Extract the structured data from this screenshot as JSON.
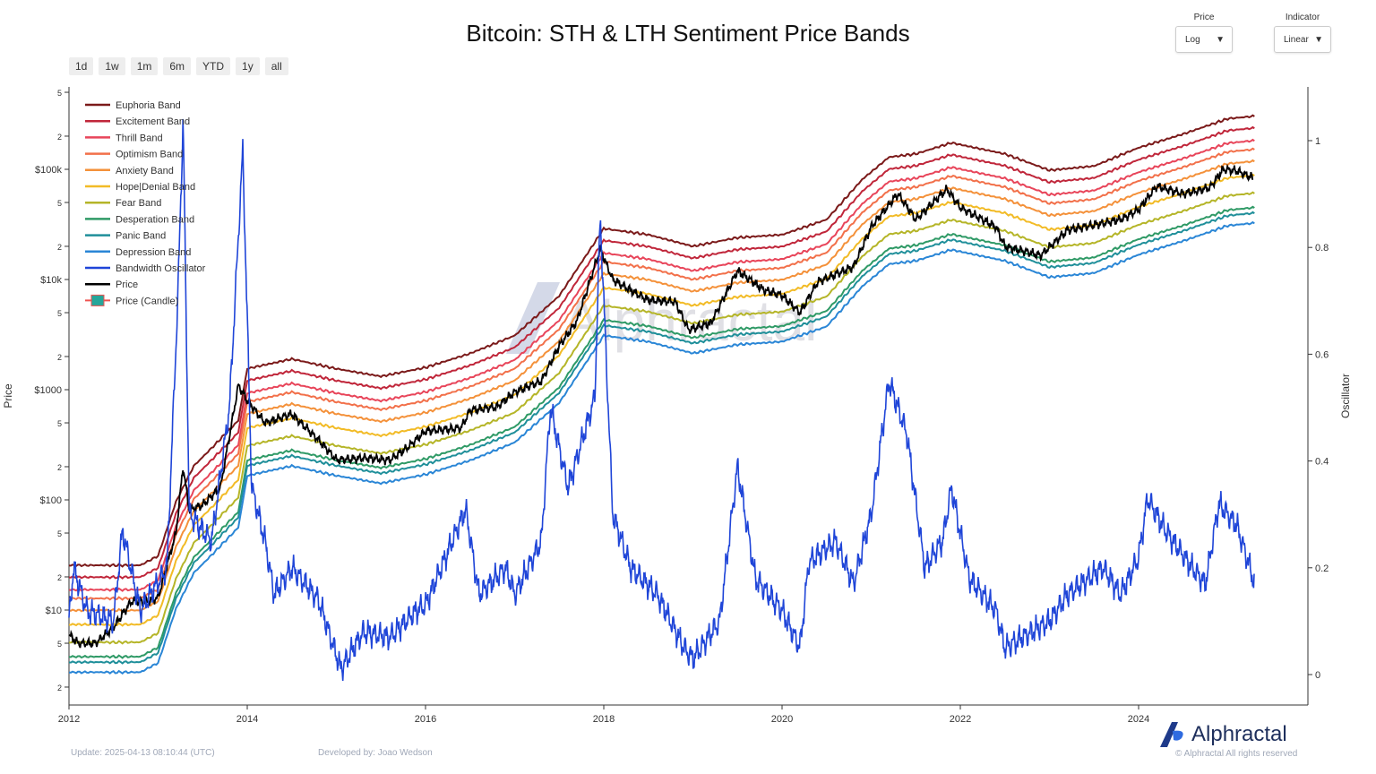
{
  "header": {
    "title": "Bitcoin: STH & LTH Sentiment Price Bands"
  },
  "range_buttons": [
    "1d",
    "1w",
    "1m",
    "6m",
    "YTD",
    "1y",
    "all"
  ],
  "controls": {
    "price_label": "Price",
    "price_value": "Log",
    "indicator_label": "Indicator",
    "indicator_value": "Linear"
  },
  "footer": {
    "update": "Update: 2025-04-13 08:10:44 (UTC)",
    "developer": "Developed by: Joao Wedson",
    "brand": "Alphractal",
    "rights": "© Alphractal All rights reserved"
  },
  "watermark": "Alphractal",
  "chart_data": {
    "type": "line",
    "title": "Bitcoin: STH & LTH Sentiment Price Bands",
    "ylabel": "Price",
    "y2label": "Oscillator",
    "xlim": [
      2012,
      2025.9
    ],
    "ylim": [
      1.5,
      600000
    ],
    "y2lim": [
      -0.08,
      1.08
    ],
    "x_ticks": [
      "2012",
      "2014",
      "2016",
      "2018",
      "2020",
      "2022",
      "2024"
    ],
    "y_ticks": [
      {
        "v": 2,
        "l": "2"
      },
      {
        "v": 5,
        "l": "5"
      },
      {
        "v": 10,
        "l": "$10"
      },
      {
        "v": 20,
        "l": "2"
      },
      {
        "v": 50,
        "l": "5"
      },
      {
        "v": 100,
        "l": "$100"
      },
      {
        "v": 200,
        "l": "2"
      },
      {
        "v": 500,
        "l": "5"
      },
      {
        "v": 1000,
        "l": "$1000"
      },
      {
        "v": 2000,
        "l": "2"
      },
      {
        "v": 5000,
        "l": "5"
      },
      {
        "v": 10000,
        "l": "$10k"
      },
      {
        "v": 20000,
        "l": "2"
      },
      {
        "v": 50000,
        "l": "5"
      },
      {
        "v": 100000,
        "l": "$100k"
      },
      {
        "v": 200000,
        "l": "2"
      },
      {
        "v": 500000,
        "l": "5"
      }
    ],
    "y2_ticks": [
      "0",
      "0.2",
      "0.4",
      "0.6",
      "0.8",
      "1"
    ],
    "legend_position": "top-left",
    "band_reference_euphoria": [
      [
        2012.0,
        25.5
      ],
      [
        2012.8,
        25.5
      ],
      [
        2013.0,
        31
      ],
      [
        2013.2,
        96
      ],
      [
        2013.4,
        203
      ],
      [
        2013.6,
        295
      ],
      [
        2013.9,
        525
      ],
      [
        2014.0,
        1550
      ],
      [
        2014.5,
        1900
      ],
      [
        2015.0,
        1550
      ],
      [
        2015.5,
        1320
      ],
      [
        2016.0,
        1590
      ],
      [
        2016.5,
        2130
      ],
      [
        2017.0,
        3100
      ],
      [
        2017.5,
        7100
      ],
      [
        2017.9,
        21800
      ],
      [
        2018.0,
        29000
      ],
      [
        2018.5,
        25500
      ],
      [
        2019.0,
        20000
      ],
      [
        2019.5,
        24000
      ],
      [
        2020.0,
        25500
      ],
      [
        2020.5,
        35000
      ],
      [
        2020.9,
        81000
      ],
      [
        2021.2,
        129000
      ],
      [
        2021.5,
        138000
      ],
      [
        2021.9,
        174000
      ],
      [
        2022.5,
        138000
      ],
      [
        2023.0,
        98000
      ],
      [
        2023.5,
        107000
      ],
      [
        2024.0,
        157000
      ],
      [
        2024.5,
        209000
      ],
      [
        2025.0,
        288000
      ],
      [
        2025.3,
        304000
      ]
    ],
    "bands": [
      {
        "name": "Euphoria Band",
        "color": "#7b1a1a",
        "multiplier": 1
      },
      {
        "name": "Excitement Band",
        "color": "#c0263a",
        "multiplier": 0.78
      },
      {
        "name": "Thrill Band",
        "color": "#e8455a",
        "multiplier": 0.6
      },
      {
        "name": "Optimism Band",
        "color": "#f2704a",
        "multiplier": 0.5
      },
      {
        "name": "Anxiety Band",
        "color": "#f4913a",
        "multiplier": 0.39
      },
      {
        "name": "Hope|Denial Band",
        "color": "#f2bb26",
        "multiplier": 0.29
      },
      {
        "name": "Fear Band",
        "color": "#b5b528",
        "multiplier": 0.2
      },
      {
        "name": "Desperation Band",
        "color": "#2f9a66",
        "multiplier": 0.148
      },
      {
        "name": "Panic Band",
        "color": "#1f8f9a",
        "multiplier": 0.132
      },
      {
        "name": "Depression Band",
        "color": "#2a86d6",
        "multiplier": 0.107
      }
    ],
    "oscillator": {
      "name": "Bandwidth Oscillator",
      "color": "#1f45d8",
      "points": [
        [
          2012.0,
          0.1
        ],
        [
          2012.05,
          0.2
        ],
        [
          2012.2,
          0.12
        ],
        [
          2012.5,
          0.1
        ],
        [
          2012.6,
          0.27
        ],
        [
          2012.8,
          0.12
        ],
        [
          2013.1,
          0.2
        ],
        [
          2013.22,
          0.7
        ],
        [
          2013.28,
          1.04
        ],
        [
          2013.35,
          0.3
        ],
        [
          2013.6,
          0.25
        ],
        [
          2013.8,
          0.5
        ],
        [
          2013.95,
          0.98
        ],
        [
          2014.05,
          0.35
        ],
        [
          2014.2,
          0.25
        ],
        [
          2014.3,
          0.15
        ],
        [
          2014.5,
          0.2
        ],
        [
          2014.8,
          0.14
        ],
        [
          2015.05,
          0.01
        ],
        [
          2015.3,
          0.08
        ],
        [
          2015.6,
          0.07
        ],
        [
          2015.9,
          0.12
        ],
        [
          2016.0,
          0.13
        ],
        [
          2016.45,
          0.31
        ],
        [
          2016.6,
          0.15
        ],
        [
          2016.9,
          0.2
        ],
        [
          2017.0,
          0.15
        ],
        [
          2017.3,
          0.25
        ],
        [
          2017.4,
          0.5
        ],
        [
          2017.6,
          0.35
        ],
        [
          2017.9,
          0.52
        ],
        [
          2017.96,
          0.86
        ],
        [
          2018.1,
          0.3
        ],
        [
          2018.3,
          0.2
        ],
        [
          2018.6,
          0.15
        ],
        [
          2018.9,
          0.05
        ],
        [
          2019.0,
          0.03
        ],
        [
          2019.3,
          0.1
        ],
        [
          2019.5,
          0.39
        ],
        [
          2019.7,
          0.18
        ],
        [
          2020.0,
          0.12
        ],
        [
          2020.2,
          0.05
        ],
        [
          2020.3,
          0.21
        ],
        [
          2020.6,
          0.25
        ],
        [
          2020.8,
          0.17
        ],
        [
          2021.0,
          0.3
        ],
        [
          2021.2,
          0.55
        ],
        [
          2021.4,
          0.45
        ],
        [
          2021.6,
          0.2
        ],
        [
          2021.8,
          0.25
        ],
        [
          2021.9,
          0.35
        ],
        [
          2022.1,
          0.18
        ],
        [
          2022.4,
          0.12
        ],
        [
          2022.5,
          0.05
        ],
        [
          2022.8,
          0.08
        ],
        [
          2023.0,
          0.1
        ],
        [
          2023.2,
          0.15
        ],
        [
          2023.6,
          0.2
        ],
        [
          2023.8,
          0.15
        ],
        [
          2024.0,
          0.22
        ],
        [
          2024.1,
          0.33
        ],
        [
          2024.3,
          0.27
        ],
        [
          2024.6,
          0.2
        ],
        [
          2024.75,
          0.17
        ],
        [
          2024.9,
          0.32
        ],
        [
          2025.1,
          0.28
        ],
        [
          2025.25,
          0.2
        ],
        [
          2025.3,
          0.17
        ]
      ]
    },
    "price": {
      "name": "Price",
      "color": "#000000",
      "points": [
        [
          2012.0,
          6
        ],
        [
          2012.1,
          5
        ],
        [
          2012.3,
          5
        ],
        [
          2012.5,
          7
        ],
        [
          2012.7,
          12
        ],
        [
          2012.9,
          12
        ],
        [
          2013.0,
          13
        ],
        [
          2013.2,
          50
        ],
        [
          2013.28,
          200
        ],
        [
          2013.35,
          80
        ],
        [
          2013.5,
          90
        ],
        [
          2013.7,
          130
        ],
        [
          2013.9,
          1100
        ],
        [
          2014.0,
          800
        ],
        [
          2014.2,
          500
        ],
        [
          2014.5,
          600
        ],
        [
          2014.8,
          350
        ],
        [
          2015.0,
          230
        ],
        [
          2015.3,
          240
        ],
        [
          2015.6,
          230
        ],
        [
          2015.8,
          300
        ],
        [
          2016.0,
          420
        ],
        [
          2016.4,
          450
        ],
        [
          2016.5,
          650
        ],
        [
          2016.8,
          700
        ],
        [
          2017.0,
          950
        ],
        [
          2017.3,
          1200
        ],
        [
          2017.5,
          2500
        ],
        [
          2017.7,
          4200
        ],
        [
          2017.96,
          19000
        ],
        [
          2018.1,
          10000
        ],
        [
          2018.3,
          8000
        ],
        [
          2018.5,
          6500
        ],
        [
          2018.8,
          6300
        ],
        [
          2018.95,
          3500
        ],
        [
          2019.2,
          4000
        ],
        [
          2019.5,
          12000
        ],
        [
          2019.8,
          8000
        ],
        [
          2020.0,
          7200
        ],
        [
          2020.2,
          5000
        ],
        [
          2020.4,
          9500
        ],
        [
          2020.8,
          13000
        ],
        [
          2021.0,
          30000
        ],
        [
          2021.3,
          60000
        ],
        [
          2021.5,
          35000
        ],
        [
          2021.85,
          66000
        ],
        [
          2022.0,
          45000
        ],
        [
          2022.4,
          30000
        ],
        [
          2022.5,
          20000
        ],
        [
          2022.9,
          16500
        ],
        [
          2023.2,
          28000
        ],
        [
          2023.8,
          35000
        ],
        [
          2024.0,
          43000
        ],
        [
          2024.2,
          70000
        ],
        [
          2024.5,
          60000
        ],
        [
          2024.8,
          68000
        ],
        [
          2024.95,
          100000
        ],
        [
          2025.1,
          97000
        ],
        [
          2025.28,
          84000
        ]
      ]
    },
    "candle_legend": {
      "name": "Price (Candle)",
      "up_color": "#26a69a",
      "down_color": "#ef5350"
    }
  }
}
